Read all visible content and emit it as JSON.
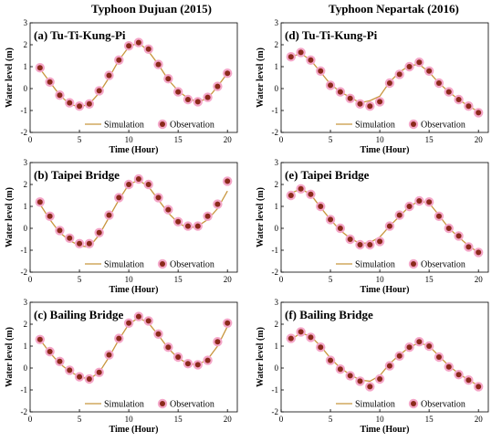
{
  "titles": {
    "left": "Typhoon Dujuan (2015)",
    "right": "Typhoon Nepartak (2016)"
  },
  "colors": {
    "simulation": "#c8963e",
    "observation_fill": "#8b2a1b",
    "observation_halo": "#f4a6c8"
  },
  "chart_data": [
    {
      "type": "line",
      "title": "(a) Tu-Ti-Kung-Pi",
      "xlabel": "Time (Hour)",
      "ylabel": "Water level (m)",
      "xlim": [
        0,
        21
      ],
      "ylim": [
        -2,
        3
      ],
      "xticks": [
        "0",
        "5",
        "10",
        "15",
        "20"
      ],
      "yticks": [
        "-2",
        "-1",
        "0",
        "1",
        "2",
        "3"
      ],
      "legend": [
        "Simulation",
        "Observation"
      ],
      "series": [
        {
          "name": "Simulation",
          "x": [
            1,
            2,
            3,
            4,
            5,
            6,
            7,
            8,
            9,
            10,
            11,
            12,
            13,
            14,
            15,
            16,
            17,
            18,
            19,
            20
          ],
          "values": [
            0.9,
            0.3,
            -0.3,
            -0.7,
            -0.85,
            -0.7,
            -0.2,
            0.5,
            1.3,
            1.9,
            2.1,
            1.7,
            1.1,
            0.4,
            -0.1,
            -0.45,
            -0.6,
            -0.45,
            0.1,
            0.7
          ]
        },
        {
          "name": "Observation",
          "x": [
            1,
            2,
            3,
            4,
            5,
            6,
            7,
            8,
            9,
            10,
            11,
            12,
            13,
            14,
            15,
            16,
            17,
            18,
            19,
            20
          ],
          "values": [
            0.95,
            0.3,
            -0.3,
            -0.65,
            -0.8,
            -0.7,
            -0.1,
            0.6,
            1.3,
            1.95,
            2.1,
            1.8,
            1.1,
            0.45,
            -0.15,
            -0.5,
            -0.6,
            -0.4,
            0.1,
            0.7
          ]
        }
      ]
    },
    {
      "type": "line",
      "title": "(d) Tu-Ti-Kung-Pi",
      "xlabel": "Time (Hour)",
      "ylabel": "Water level (m)",
      "xlim": [
        0,
        21
      ],
      "ylim": [
        -2,
        3
      ],
      "xticks": [
        "0",
        "5",
        "10",
        "15",
        "20"
      ],
      "yticks": [
        "-2",
        "-1",
        "0",
        "1",
        "2",
        "3"
      ],
      "legend": [
        "Simulation",
        "Observation"
      ],
      "series": [
        {
          "name": "Simulation",
          "x": [
            1,
            2,
            3,
            4,
            5,
            6,
            7,
            8,
            9,
            10,
            11,
            12,
            13,
            14,
            15,
            16,
            17,
            18,
            19,
            20
          ],
          "values": [
            1.45,
            1.6,
            1.3,
            0.75,
            0.2,
            -0.15,
            -0.4,
            -0.65,
            -0.55,
            -0.35,
            0.3,
            0.75,
            1.05,
            1.1,
            0.75,
            0.25,
            -0.15,
            -0.5,
            -0.8,
            -1.05
          ]
        },
        {
          "name": "Observation",
          "x": [
            1,
            2,
            3,
            4,
            5,
            6,
            7,
            8,
            9,
            10,
            11,
            12,
            13,
            14,
            15,
            16,
            17,
            18,
            19,
            20
          ],
          "values": [
            1.45,
            1.65,
            1.3,
            0.8,
            0.15,
            -0.15,
            -0.45,
            -0.7,
            -0.8,
            -0.6,
            0.25,
            0.65,
            1.0,
            1.2,
            0.8,
            0.25,
            -0.15,
            -0.5,
            -0.8,
            -1.1
          ]
        }
      ]
    },
    {
      "type": "line",
      "title": "(b) Taipei Bridge",
      "xlabel": "Time (Hour)",
      "ylabel": "Water level (m)",
      "xlim": [
        0,
        21
      ],
      "ylim": [
        -2,
        3
      ],
      "xticks": [
        "0",
        "5",
        "10",
        "15",
        "20"
      ],
      "yticks": [
        "-2",
        "-1",
        "0",
        "1",
        "2",
        "3"
      ],
      "legend": [
        "Simulation",
        "Observation"
      ],
      "series": [
        {
          "name": "Simulation",
          "x": [
            1,
            2,
            3,
            4,
            5,
            6,
            7,
            8,
            9,
            10,
            11,
            12,
            13,
            14,
            15,
            16,
            17,
            18,
            19,
            20
          ],
          "values": [
            1.1,
            0.4,
            -0.2,
            -0.55,
            -0.8,
            -0.85,
            -0.3,
            0.5,
            1.3,
            2.0,
            2.2,
            1.9,
            1.3,
            0.7,
            0.25,
            0.0,
            0.1,
            0.4,
            0.9,
            1.7
          ]
        },
        {
          "name": "Observation",
          "x": [
            1,
            2,
            3,
            4,
            5,
            6,
            7,
            8,
            9,
            10,
            11,
            12,
            13,
            14,
            15,
            16,
            17,
            18,
            19,
            20
          ],
          "values": [
            1.2,
            0.55,
            -0.1,
            -0.45,
            -0.7,
            -0.7,
            -0.2,
            0.6,
            1.4,
            2.0,
            2.25,
            2.0,
            1.4,
            0.85,
            0.3,
            0.1,
            0.1,
            0.55,
            1.1,
            2.15
          ]
        }
      ]
    },
    {
      "type": "line",
      "title": "(e) Taipei Bridge",
      "xlabel": "Time (Hour)",
      "ylabel": "Water level (m)",
      "xlim": [
        0,
        21
      ],
      "ylim": [
        -2,
        3
      ],
      "xticks": [
        "0",
        "5",
        "10",
        "15",
        "20"
      ],
      "yticks": [
        "-2",
        "-1",
        "0",
        "1",
        "2",
        "3"
      ],
      "legend": [
        "Simulation",
        "Observation"
      ],
      "series": [
        {
          "name": "Simulation",
          "x": [
            1,
            2,
            3,
            4,
            5,
            6,
            7,
            8,
            9,
            10,
            11,
            12,
            13,
            14,
            15,
            16,
            17,
            18,
            19,
            20
          ],
          "values": [
            1.6,
            1.8,
            1.55,
            0.95,
            0.4,
            -0.1,
            -0.45,
            -0.7,
            -0.65,
            -0.4,
            0.1,
            0.55,
            1.0,
            1.25,
            1.15,
            0.6,
            0.0,
            -0.4,
            -0.8,
            -1.1
          ]
        },
        {
          "name": "Observation",
          "x": [
            1,
            2,
            3,
            4,
            5,
            6,
            7,
            8,
            9,
            10,
            11,
            12,
            13,
            14,
            15,
            16,
            17,
            18,
            19,
            20
          ],
          "values": [
            1.5,
            1.8,
            1.55,
            1.0,
            0.4,
            0.0,
            -0.5,
            -0.75,
            -0.75,
            -0.6,
            0.1,
            0.6,
            1.0,
            1.25,
            1.2,
            0.55,
            0.0,
            -0.35,
            -0.85,
            -1.1
          ]
        }
      ]
    },
    {
      "type": "line",
      "title": "(c) Bailing Bridge",
      "xlabel": "Time (Hour)",
      "ylabel": "Water level (m)",
      "xlim": [
        0,
        21
      ],
      "ylim": [
        -2,
        3
      ],
      "xticks": [
        "0",
        "5",
        "10",
        "15",
        "20"
      ],
      "yticks": [
        "-2",
        "-1",
        "0",
        "1",
        "2",
        "3"
      ],
      "legend": [
        "Simulation",
        "Observation"
      ],
      "series": [
        {
          "name": "Simulation",
          "x": [
            1,
            2,
            3,
            4,
            5,
            6,
            7,
            8,
            9,
            10,
            11,
            12,
            13,
            14,
            15,
            16,
            17,
            18,
            19,
            20
          ],
          "values": [
            1.3,
            0.7,
            0.2,
            -0.15,
            -0.4,
            -0.5,
            -0.2,
            0.5,
            1.3,
            2.0,
            2.3,
            2.05,
            1.5,
            0.9,
            0.45,
            0.2,
            0.15,
            0.4,
            1.0,
            1.9
          ]
        },
        {
          "name": "Observation",
          "x": [
            1,
            2,
            3,
            4,
            5,
            6,
            7,
            8,
            9,
            10,
            11,
            12,
            13,
            14,
            15,
            16,
            17,
            18,
            19,
            20
          ],
          "values": [
            1.3,
            0.75,
            0.3,
            -0.1,
            -0.4,
            -0.5,
            -0.2,
            0.6,
            1.35,
            2.05,
            2.35,
            2.15,
            1.55,
            0.95,
            0.5,
            0.2,
            0.15,
            0.35,
            1.2,
            2.05
          ]
        }
      ]
    },
    {
      "type": "line",
      "title": "(f) Bailing Bridge",
      "xlabel": "Time (Hour)",
      "ylabel": "Water level (m)",
      "xlim": [
        0,
        21
      ],
      "ylim": [
        -2,
        3
      ],
      "xticks": [
        "0",
        "5",
        "10",
        "15",
        "20"
      ],
      "yticks": [
        "-2",
        "-1",
        "0",
        "1",
        "2",
        "3"
      ],
      "legend": [
        "Simulation",
        "Observation"
      ],
      "series": [
        {
          "name": "Simulation",
          "x": [
            1,
            2,
            3,
            4,
            5,
            6,
            7,
            8,
            9,
            10,
            11,
            12,
            13,
            14,
            15,
            16,
            17,
            18,
            19,
            20
          ],
          "values": [
            1.3,
            1.6,
            1.45,
            1.0,
            0.45,
            0.0,
            -0.3,
            -0.55,
            -0.6,
            -0.35,
            0.2,
            0.6,
            0.95,
            1.15,
            1.0,
            0.55,
            0.1,
            -0.25,
            -0.55,
            -0.8
          ]
        },
        {
          "name": "Observation",
          "x": [
            1,
            2,
            3,
            4,
            5,
            6,
            7,
            8,
            9,
            10,
            11,
            12,
            13,
            14,
            15,
            16,
            17,
            18,
            19,
            20
          ],
          "values": [
            1.35,
            1.65,
            1.4,
            0.95,
            0.35,
            -0.05,
            -0.35,
            -0.6,
            -0.85,
            -0.5,
            0.1,
            0.55,
            0.95,
            1.2,
            1.0,
            0.5,
            0.05,
            -0.3,
            -0.55,
            -0.85
          ]
        }
      ]
    }
  ]
}
